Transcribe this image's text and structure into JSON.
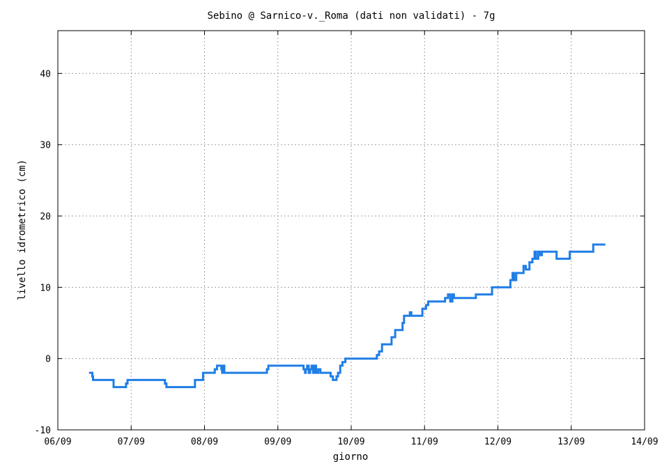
{
  "chart_data": {
    "type": "line",
    "title": "Sebino @ Sarnico-v._Roma (dati non validati) - 7g",
    "xlabel": "giorno",
    "ylabel": "livello idrometrico (cm)",
    "xlim": [
      0,
      8
    ],
    "ylim": [
      -10,
      46
    ],
    "x_ticks": [
      0,
      1,
      2,
      3,
      4,
      5,
      6,
      7,
      8
    ],
    "x_tick_labels": [
      "06/09",
      "07/09",
      "08/09",
      "09/09",
      "10/09",
      "11/09",
      "12/09",
      "13/09",
      "14/09"
    ],
    "y_ticks": [
      -10,
      0,
      10,
      20,
      30,
      40
    ],
    "y_tick_labels": [
      "-10",
      "0",
      "10",
      "20",
      "30",
      "40"
    ],
    "grid": true,
    "series_color": "#1f7ee6",
    "series": [
      {
        "x": [
          0.44,
          0.47,
          0.47,
          0.48,
          0.48,
          0.5,
          0.5,
          0.76,
          0.76,
          0.93,
          0.93,
          0.95,
          0.95,
          1.46,
          1.46,
          1.48,
          1.48,
          1.5,
          1.5,
          1.87,
          1.87,
          1.98,
          1.98,
          2.14,
          2.14,
          2.17,
          2.17,
          2.23,
          2.23,
          2.24,
          2.24,
          2.25,
          2.25,
          2.27,
          2.27,
          2.85,
          2.85,
          2.87,
          2.87,
          2.88,
          2.88,
          3.35,
          3.35,
          3.37,
          3.37,
          3.38,
          3.38,
          3.4,
          3.4,
          3.42,
          3.42,
          3.44,
          3.44,
          3.46,
          3.46,
          3.48,
          3.48,
          3.5,
          3.5,
          3.52,
          3.52,
          3.55,
          3.55,
          3.58,
          3.58,
          3.72,
          3.72,
          3.75,
          3.75,
          3.8,
          3.8,
          3.82,
          3.82,
          3.85,
          3.85,
          3.88,
          3.88,
          3.92,
          3.92,
          4.35,
          4.35,
          4.38,
          4.38,
          4.42,
          4.42,
          4.55,
          4.55,
          4.6,
          4.6,
          4.7,
          4.7,
          4.72,
          4.72,
          4.8,
          4.8,
          4.82,
          4.82,
          4.97,
          4.97,
          5.02,
          5.02,
          5.05,
          5.05,
          5.28,
          5.28,
          5.32,
          5.32,
          5.35,
          5.35,
          5.38,
          5.38,
          5.4,
          5.4,
          5.7,
          5.7,
          5.92,
          5.92,
          6.17,
          6.17,
          6.2,
          6.2,
          6.22,
          6.22,
          6.25,
          6.25,
          6.35,
          6.35,
          6.38,
          6.38,
          6.43,
          6.43,
          6.47,
          6.47,
          6.5,
          6.5,
          6.52,
          6.52,
          6.55,
          6.55,
          6.58,
          6.58,
          6.6,
          6.6,
          6.8,
          6.8,
          6.98,
          6.98,
          7.3,
          7.3,
          7.45
        ],
        "values": [
          -2,
          -2,
          -2.5,
          -2.5,
          -3,
          -3,
          -3,
          -3,
          -4,
          -4,
          -3.5,
          -3.5,
          -3,
          -3,
          -3.5,
          -3.5,
          -4,
          -4,
          -4,
          -4,
          -3,
          -3,
          -2,
          -2,
          -1.5,
          -1.5,
          -1,
          -1,
          -1.5,
          -1.5,
          -2,
          -2,
          -1,
          -1,
          -2,
          -2,
          -1.5,
          -1.5,
          -1,
          -1,
          -1,
          -1,
          -1.5,
          -1.5,
          -2,
          -2,
          -1.5,
          -1.5,
          -1,
          -1,
          -2,
          -2,
          -1.5,
          -1.5,
          -1,
          -1,
          -2,
          -2,
          -1,
          -1,
          -2,
          -2,
          -1.5,
          -1.5,
          -2,
          -2,
          -2.5,
          -2.5,
          -3,
          -3,
          -2.5,
          -2.5,
          -2,
          -2,
          -1,
          -1,
          -0.5,
          -0.5,
          0,
          0,
          0.5,
          0.5,
          1,
          1,
          2,
          2,
          3,
          3,
          4,
          4,
          5,
          5,
          6,
          6,
          6.5,
          6.5,
          6,
          6,
          7,
          7,
          7.5,
          7.5,
          8,
          8,
          8.5,
          8.5,
          9,
          9,
          8,
          8,
          9,
          9,
          8.5,
          8.5,
          9,
          9,
          10,
          10,
          11,
          11,
          12,
          12,
          11,
          11,
          12,
          12,
          13,
          13,
          12.5,
          12.5,
          13.5,
          13.5,
          14,
          14,
          15,
          15,
          14,
          14,
          15,
          15,
          14.5,
          14.5,
          15,
          15,
          14,
          14,
          15,
          15,
          16,
          16
        ]
      }
    ]
  }
}
